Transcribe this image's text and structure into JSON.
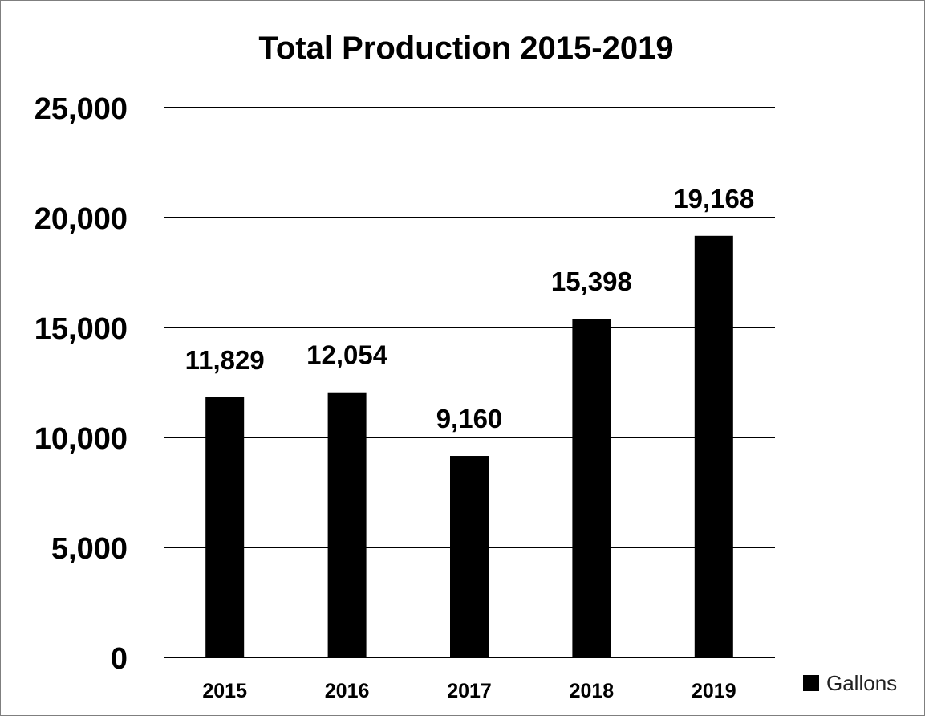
{
  "chart_data": {
    "type": "bar",
    "title": "Total Production 2015-2019",
    "categories": [
      "2015",
      "2016",
      "2017",
      "2018",
      "2019"
    ],
    "series": [
      {
        "name": "Gallons",
        "values": [
          11829,
          12054,
          9160,
          15398,
          19168
        ],
        "data_labels": [
          "11,829",
          "12,054",
          "9,160",
          "15,398",
          "19,168"
        ],
        "color": "#000000"
      }
    ],
    "y_ticks": [
      0,
      5000,
      10000,
      15000,
      20000,
      25000
    ],
    "y_tick_labels": [
      "0",
      "5,000",
      "10,000",
      "15,000",
      "20,000",
      "25,000"
    ],
    "ylim": [
      0,
      25000
    ],
    "xlabel": "",
    "ylabel": "",
    "grid": true,
    "legend_position": "bottom-right"
  }
}
